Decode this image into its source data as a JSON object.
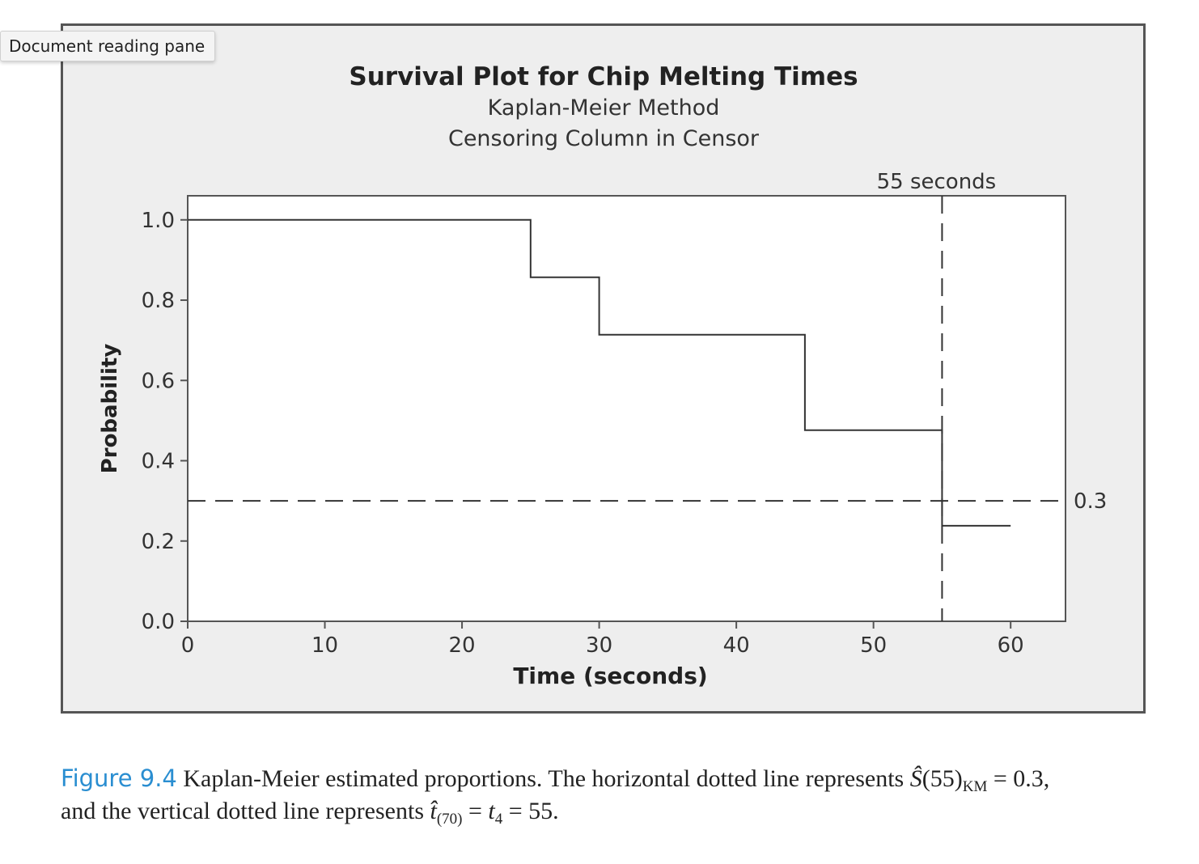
{
  "tooltip": {
    "label": "Document reading pane"
  },
  "chart_data": {
    "type": "line",
    "step": true,
    "title": "Survival Plot for Chip Melting Times",
    "subtitle_1": "Kaplan-Meier Method",
    "subtitle_2": "Censoring Column in Censor",
    "xlabel": "Time (seconds)",
    "ylabel": "Probability",
    "xlim": [
      0,
      64
    ],
    "ylim": [
      0,
      1.06
    ],
    "x_ticks": [
      "0",
      "10",
      "20",
      "30",
      "40",
      "50",
      "60"
    ],
    "x_tick_values": [
      0,
      10,
      20,
      30,
      40,
      50,
      60
    ],
    "y_ticks": [
      "0.0",
      "0.2",
      "0.4",
      "0.6",
      "0.8",
      "1.0"
    ],
    "y_tick_values": [
      0,
      0.2,
      0.4,
      0.6,
      0.8,
      1.0
    ],
    "series": [
      {
        "x": [
          0,
          25,
          25,
          30,
          30,
          45,
          45,
          55,
          55,
          60
        ],
        "y": [
          1.0,
          1.0,
          0.857,
          0.857,
          0.714,
          0.714,
          0.476,
          0.476,
          0.238,
          0.238
        ]
      }
    ],
    "reference_lines": {
      "horizontal": {
        "y": 0.3,
        "label": "0.3"
      },
      "vertical": {
        "x": 55,
        "label": "55 seconds"
      }
    },
    "grid": false
  },
  "caption": {
    "figure_label": "Figure 9.4",
    "text_1": " Kaplan-Meier estimated proportions. The horizontal dotted line represents ",
    "s_hat": "Ŝ",
    "s_arg": "(55)",
    "s_sub": "KM",
    "eq_1": " = 0.3,",
    "text_2": "and the vertical dotted line represents ",
    "t_hat": "t̂",
    "t_sub": "(70)",
    "eq_2": " = ",
    "t4": "t",
    "t4_sub": "4",
    "eq_3": " = 55."
  }
}
